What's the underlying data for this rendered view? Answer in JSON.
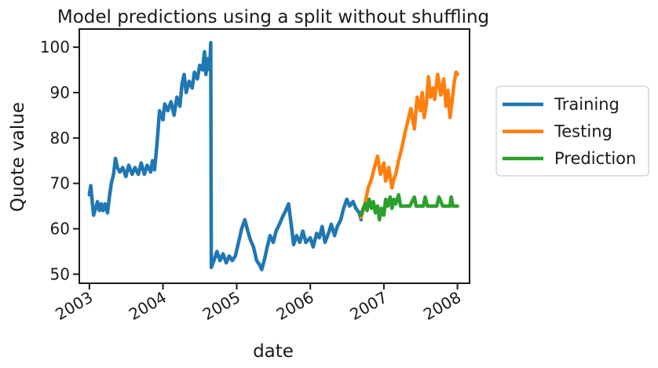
{
  "chart_data": {
    "type": "line",
    "title": "Model predictions using a split without shuffling",
    "xlabel": "date",
    "ylabel": "Quote value",
    "xlim": [
      "2002-11-12",
      "2008-03-01"
    ],
    "ylim": [
      48,
      104
    ],
    "x_ticks": [
      {
        "label": "2003",
        "date": "2003-01-01"
      },
      {
        "label": "2004",
        "date": "2004-01-01"
      },
      {
        "label": "2005",
        "date": "2005-01-01"
      },
      {
        "label": "2006",
        "date": "2006-01-01"
      },
      {
        "label": "2007",
        "date": "2007-01-01"
      },
      {
        "label": "2008",
        "date": "2008-01-01"
      }
    ],
    "y_ticks": [
      50,
      60,
      70,
      80,
      90,
      100
    ],
    "grid": false,
    "legend": {
      "placement": "right, outside"
    },
    "series": [
      {
        "name": "Training",
        "color": "#1f77b4",
        "points": [
          [
            "2003-01-01",
            67.5
          ],
          [
            "2003-01-08",
            69.5
          ],
          [
            "2003-01-15",
            66.0
          ],
          [
            "2003-01-22",
            63.0
          ],
          [
            "2003-02-01",
            64.5
          ],
          [
            "2003-02-10",
            66.0
          ],
          [
            "2003-02-20",
            64.0
          ],
          [
            "2003-03-01",
            65.5
          ],
          [
            "2003-03-10",
            64.0
          ],
          [
            "2003-03-20",
            65.5
          ],
          [
            "2003-04-01",
            63.5
          ],
          [
            "2003-04-10",
            67.0
          ],
          [
            "2003-04-20",
            70.0
          ],
          [
            "2003-05-01",
            72.0
          ],
          [
            "2003-05-10",
            75.5
          ],
          [
            "2003-05-20",
            73.5
          ],
          [
            "2003-06-01",
            72.5
          ],
          [
            "2003-06-15",
            73.5
          ],
          [
            "2003-07-01",
            71.5
          ],
          [
            "2003-07-15",
            74.0
          ],
          [
            "2003-08-01",
            72.0
          ],
          [
            "2003-08-15",
            73.5
          ],
          [
            "2003-09-01",
            72.0
          ],
          [
            "2003-09-15",
            74.5
          ],
          [
            "2003-10-01",
            72.0
          ],
          [
            "2003-10-15",
            74.0
          ],
          [
            "2003-11-01",
            72.5
          ],
          [
            "2003-11-10",
            75.0
          ],
          [
            "2003-11-20",
            73.0
          ],
          [
            "2003-12-01",
            78.0
          ],
          [
            "2003-12-15",
            86.0
          ],
          [
            "2004-01-01",
            84.0
          ],
          [
            "2004-01-10",
            87.5
          ],
          [
            "2004-01-25",
            86.0
          ],
          [
            "2004-02-10",
            88.0
          ],
          [
            "2004-02-25",
            85.0
          ],
          [
            "2004-03-10",
            89.0
          ],
          [
            "2004-03-25",
            87.0
          ],
          [
            "2004-04-05",
            92.0
          ],
          [
            "2004-04-15",
            94.0
          ],
          [
            "2004-04-25",
            90.0
          ],
          [
            "2004-05-10",
            92.5
          ],
          [
            "2004-05-25",
            91.0
          ],
          [
            "2004-06-05",
            94.5
          ],
          [
            "2004-06-20",
            93.0
          ],
          [
            "2004-07-01",
            96.0
          ],
          [
            "2004-07-15",
            95.0
          ],
          [
            "2004-07-25",
            99.0
          ],
          [
            "2004-08-01",
            94.0
          ],
          [
            "2004-08-10",
            97.5
          ],
          [
            "2004-08-20",
            95.0
          ],
          [
            "2004-08-25",
            101.0
          ],
          [
            "2004-08-28",
            51.5
          ],
          [
            "2004-09-10",
            53.0
          ],
          [
            "2004-09-25",
            55.0
          ],
          [
            "2004-10-10",
            53.0
          ],
          [
            "2004-10-25",
            54.5
          ],
          [
            "2004-11-10",
            52.5
          ],
          [
            "2004-11-25",
            54.0
          ],
          [
            "2004-12-10",
            53.0
          ],
          [
            "2004-12-25",
            54.0
          ],
          [
            "2005-01-10",
            57.0
          ],
          [
            "2005-01-25",
            60.0
          ],
          [
            "2005-02-10",
            62.0
          ],
          [
            "2005-02-25",
            59.5
          ],
          [
            "2005-03-10",
            57.5
          ],
          [
            "2005-03-25",
            56.0
          ],
          [
            "2005-04-10",
            53.0
          ],
          [
            "2005-04-25",
            52.0
          ],
          [
            "2005-05-05",
            51.0
          ],
          [
            "2005-05-20",
            53.5
          ],
          [
            "2005-06-01",
            56.0
          ],
          [
            "2005-06-15",
            58.5
          ],
          [
            "2005-07-01",
            57.0
          ],
          [
            "2005-07-15",
            59.5
          ],
          [
            "2005-08-01",
            61.0
          ],
          [
            "2005-08-15",
            62.5
          ],
          [
            "2005-09-01",
            64.0
          ],
          [
            "2005-09-15",
            65.5
          ],
          [
            "2005-10-01",
            60.0
          ],
          [
            "2005-10-10",
            56.5
          ],
          [
            "2005-10-25",
            58.5
          ],
          [
            "2005-11-10",
            57.0
          ],
          [
            "2005-11-25",
            59.5
          ],
          [
            "2005-12-10",
            57.0
          ],
          [
            "2006-01-01",
            58.0
          ],
          [
            "2006-01-15",
            56.0
          ],
          [
            "2006-02-01",
            59.0
          ],
          [
            "2006-02-15",
            58.0
          ],
          [
            "2006-03-01",
            60.5
          ],
          [
            "2006-03-15",
            57.0
          ],
          [
            "2006-04-01",
            59.0
          ],
          [
            "2006-04-15",
            61.0
          ],
          [
            "2006-05-01",
            58.5
          ],
          [
            "2006-05-15",
            60.5
          ],
          [
            "2006-06-01",
            62.0
          ],
          [
            "2006-06-15",
            64.5
          ],
          [
            "2006-07-01",
            66.5
          ],
          [
            "2006-07-15",
            65.0
          ],
          [
            "2006-08-01",
            66.0
          ],
          [
            "2006-08-15",
            64.5
          ],
          [
            "2006-09-01",
            63.5
          ],
          [
            "2006-09-10",
            62.0
          ]
        ]
      },
      {
        "name": "Testing",
        "color": "#ff7f0e",
        "points": [
          [
            "2006-09-10",
            62.5
          ],
          [
            "2006-09-20",
            64.0
          ],
          [
            "2006-10-01",
            66.0
          ],
          [
            "2006-10-15",
            69.0
          ],
          [
            "2006-11-01",
            71.0
          ],
          [
            "2006-11-15",
            73.5
          ],
          [
            "2006-12-01",
            76.0
          ],
          [
            "2006-12-15",
            72.0
          ],
          [
            "2007-01-01",
            74.5
          ],
          [
            "2007-01-10",
            70.5
          ],
          [
            "2007-01-25",
            73.5
          ],
          [
            "2007-02-10",
            69.0
          ],
          [
            "2007-02-20",
            71.0
          ],
          [
            "2007-03-01",
            72.0
          ],
          [
            "2007-03-15",
            75.0
          ],
          [
            "2007-04-01",
            78.0
          ],
          [
            "2007-04-15",
            81.0
          ],
          [
            "2007-05-01",
            84.0
          ],
          [
            "2007-05-15",
            86.5
          ],
          [
            "2007-06-01",
            82.0
          ],
          [
            "2007-06-15",
            89.0
          ],
          [
            "2007-07-01",
            86.0
          ],
          [
            "2007-07-10",
            90.0
          ],
          [
            "2007-07-20",
            84.5
          ],
          [
            "2007-08-01",
            88.0
          ],
          [
            "2007-08-10",
            93.5
          ],
          [
            "2007-08-20",
            89.0
          ],
          [
            "2007-09-01",
            91.0
          ],
          [
            "2007-09-10",
            88.5
          ],
          [
            "2007-09-25",
            94.0
          ],
          [
            "2007-10-10",
            89.5
          ],
          [
            "2007-10-25",
            93.0
          ],
          [
            "2007-11-05",
            87.0
          ],
          [
            "2007-11-15",
            90.5
          ],
          [
            "2007-11-25",
            84.5
          ],
          [
            "2007-12-05",
            88.0
          ],
          [
            "2007-12-15",
            92.0
          ],
          [
            "2007-12-25",
            94.5
          ],
          [
            "2008-01-01",
            94.0
          ]
        ]
      },
      {
        "name": "Prediction",
        "color": "#2ca02c",
        "points": [
          [
            "2006-09-10",
            63.0
          ],
          [
            "2006-09-20",
            64.5
          ],
          [
            "2006-10-01",
            65.5
          ],
          [
            "2006-10-10",
            64.0
          ],
          [
            "2006-10-20",
            66.5
          ],
          [
            "2006-11-01",
            64.5
          ],
          [
            "2006-11-10",
            66.0
          ],
          [
            "2006-11-20",
            63.5
          ],
          [
            "2006-12-01",
            65.0
          ],
          [
            "2006-12-10",
            62.0
          ],
          [
            "2006-12-20",
            64.5
          ],
          [
            "2007-01-01",
            63.0
          ],
          [
            "2007-01-10",
            66.5
          ],
          [
            "2007-01-20",
            65.0
          ],
          [
            "2007-02-01",
            67.0
          ],
          [
            "2007-02-10",
            64.5
          ],
          [
            "2007-02-20",
            66.5
          ],
          [
            "2007-03-01",
            65.5
          ],
          [
            "2007-03-15",
            67.5
          ],
          [
            "2007-03-25",
            65.0
          ],
          [
            "2007-04-10",
            65.0
          ],
          [
            "2007-05-10",
            65.0
          ],
          [
            "2007-06-01",
            67.0
          ],
          [
            "2007-06-10",
            65.0
          ],
          [
            "2007-07-15",
            65.0
          ],
          [
            "2007-07-25",
            67.0
          ],
          [
            "2007-08-05",
            65.0
          ],
          [
            "2007-09-20",
            65.0
          ],
          [
            "2007-10-01",
            67.0
          ],
          [
            "2007-10-20",
            65.0
          ],
          [
            "2007-11-25",
            65.0
          ],
          [
            "2007-12-01",
            67.0
          ],
          [
            "2007-12-10",
            65.0
          ],
          [
            "2008-01-01",
            65.0
          ]
        ]
      }
    ]
  }
}
